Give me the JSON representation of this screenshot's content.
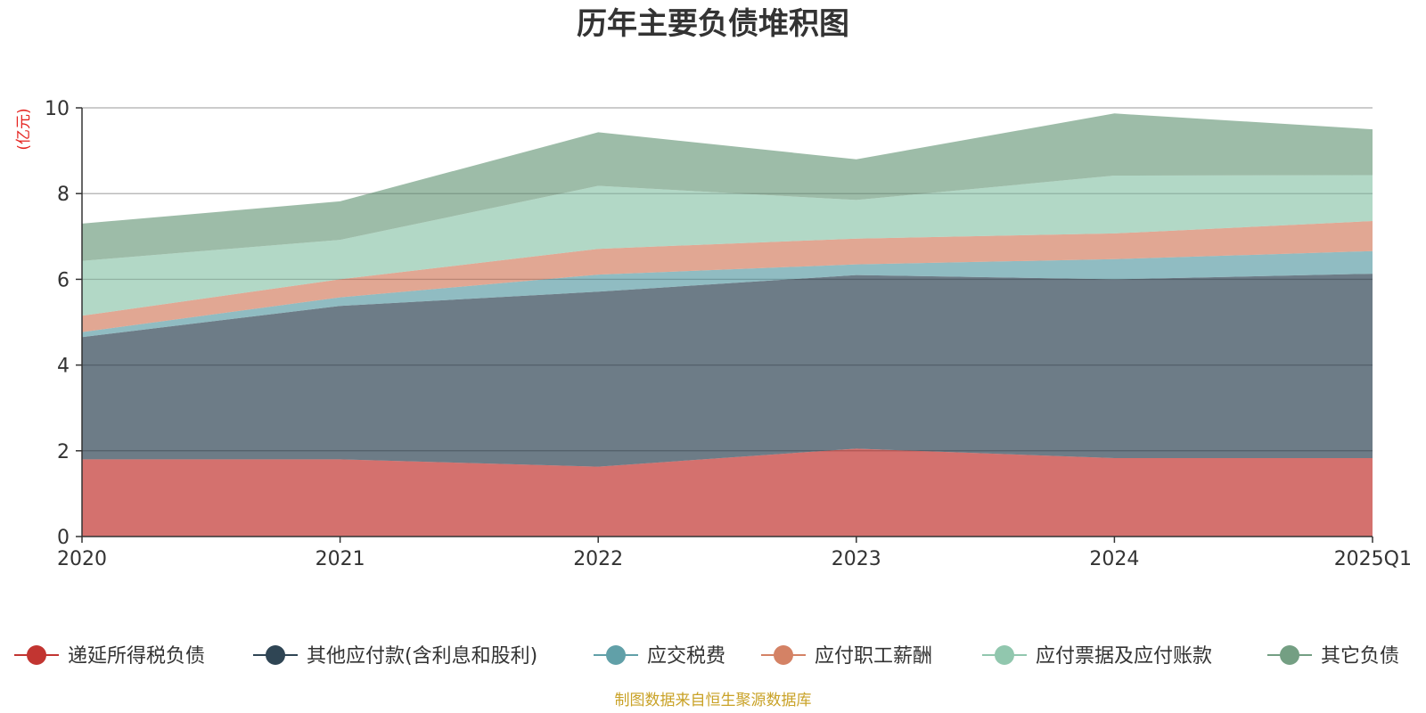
{
  "chart_data": {
    "type": "area",
    "stacked": true,
    "title": "历年主要负债堆积图",
    "ylabel": "(亿元)",
    "xlabel": "",
    "categories": [
      "2020",
      "2021",
      "2022",
      "2023",
      "2024",
      "2025Q1"
    ],
    "ylim": [
      0,
      10
    ],
    "yticks": [
      0,
      2,
      4,
      6,
      8,
      10
    ],
    "grid": true,
    "legend_position": "bottom",
    "series": [
      {
        "name": "递延所得税负债",
        "color": "#c23531",
        "values": [
          1.8,
          1.8,
          1.63,
          2.05,
          1.83,
          1.83
        ]
      },
      {
        "name": "其他应付款(含利息和股利)",
        "color": "#2f4554",
        "values": [
          2.85,
          3.58,
          4.08,
          4.05,
          4.17,
          4.3
        ]
      },
      {
        "name": "应交税费",
        "color": "#61a0a8",
        "values": [
          0.12,
          0.2,
          0.4,
          0.25,
          0.47,
          0.53
        ]
      },
      {
        "name": "应付职工薪酬",
        "color": "#d48265",
        "values": [
          0.38,
          0.42,
          0.6,
          0.6,
          0.6,
          0.7
        ]
      },
      {
        "name": "应付票据及应付账款",
        "color": "#91c7ae",
        "values": [
          1.28,
          0.92,
          1.47,
          0.9,
          1.35,
          1.07
        ]
      },
      {
        "name": "其它负债",
        "color": "#749f83",
        "values": [
          0.87,
          0.9,
          1.25,
          0.95,
          1.45,
          1.07
        ]
      }
    ]
  },
  "source_note": "制图数据来自恒生聚源数据库"
}
